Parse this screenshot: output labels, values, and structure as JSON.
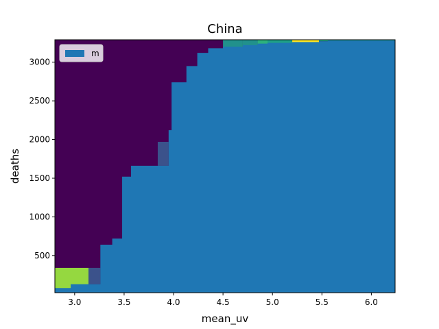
{
  "chart_data": {
    "type": "heatmap",
    "title": "China",
    "xlabel": "mean_uv",
    "ylabel": "deaths",
    "xlim": [
      2.8,
      6.24
    ],
    "ylim": [
      20,
      3290
    ],
    "xticks": [
      3.0,
      3.5,
      4.0,
      4.5,
      5.0,
      5.5,
      6.0
    ],
    "xtick_labels": [
      "3.0",
      "3.5",
      "4.0",
      "4.5",
      "5.0",
      "5.5",
      "6.0"
    ],
    "yticks": [
      500,
      1000,
      1500,
      2000,
      2500,
      3000
    ],
    "ytick_labels": [
      "500",
      "1000",
      "1500",
      "2000",
      "2500",
      "3000"
    ],
    "legend": {
      "position": "top-left",
      "entries": [
        {
          "label": "m",
          "color": "#1f77b4"
        }
      ]
    },
    "grid": false,
    "background_color": "#440154",
    "cells": [
      {
        "x0": 2.8,
        "x1": 3.14,
        "y0": 20,
        "y1": 340,
        "color": "#95d840"
      },
      {
        "x0": 3.14,
        "x1": 3.26,
        "y0": 130,
        "y1": 340,
        "color": "#3b528b"
      },
      {
        "x0": 3.84,
        "x1": 3.95,
        "y0": 1660,
        "y1": 1970,
        "color": "#3b528b"
      },
      {
        "x0": 4.5,
        "x1": 4.7,
        "y0": 3180,
        "y1": 3290,
        "color": "#21918c"
      },
      {
        "x0": 4.7,
        "x1": 4.85,
        "y0": 3200,
        "y1": 3290,
        "color": "#21918c"
      },
      {
        "x0": 4.85,
        "x1": 4.95,
        "y0": 3220,
        "y1": 3290,
        "color": "#2db27d"
      },
      {
        "x0": 4.95,
        "x1": 5.2,
        "y0": 3240,
        "y1": 3290,
        "color": "#1fa187"
      },
      {
        "x0": 5.2,
        "x1": 5.47,
        "y0": 3250,
        "y1": 3290,
        "color": "#fde725"
      },
      {
        "x0": 5.47,
        "x1": 6.24,
        "y0": 3270,
        "y1": 3290,
        "color": "#22a884"
      }
    ],
    "series": [
      {
        "name": "m",
        "type": "area",
        "color": "#1f77b4",
        "x": [
          2.8,
          2.96,
          2.96,
          3.26,
          3.26,
          3.38,
          3.38,
          3.48,
          3.48,
          3.57,
          3.57,
          3.95,
          3.95,
          3.98,
          3.98,
          4.13,
          4.13,
          4.24,
          4.24,
          4.35,
          4.35,
          4.5,
          4.5,
          4.7,
          4.7,
          4.85,
          4.85,
          4.95,
          4.95,
          5.2,
          5.2,
          5.47,
          5.47,
          5.56,
          5.56,
          5.84,
          5.84,
          6.24
        ],
        "y": [
          80,
          80,
          130,
          130,
          640,
          640,
          720,
          720,
          1520,
          1520,
          1660,
          1660,
          2120,
          2120,
          2740,
          2740,
          2950,
          2950,
          3120,
          3120,
          3180,
          3180,
          3200,
          3200,
          3220,
          3220,
          3240,
          3240,
          3250,
          3250,
          3260,
          3260,
          3270,
          3270,
          3280,
          3280,
          3280,
          3280
        ]
      }
    ]
  }
}
